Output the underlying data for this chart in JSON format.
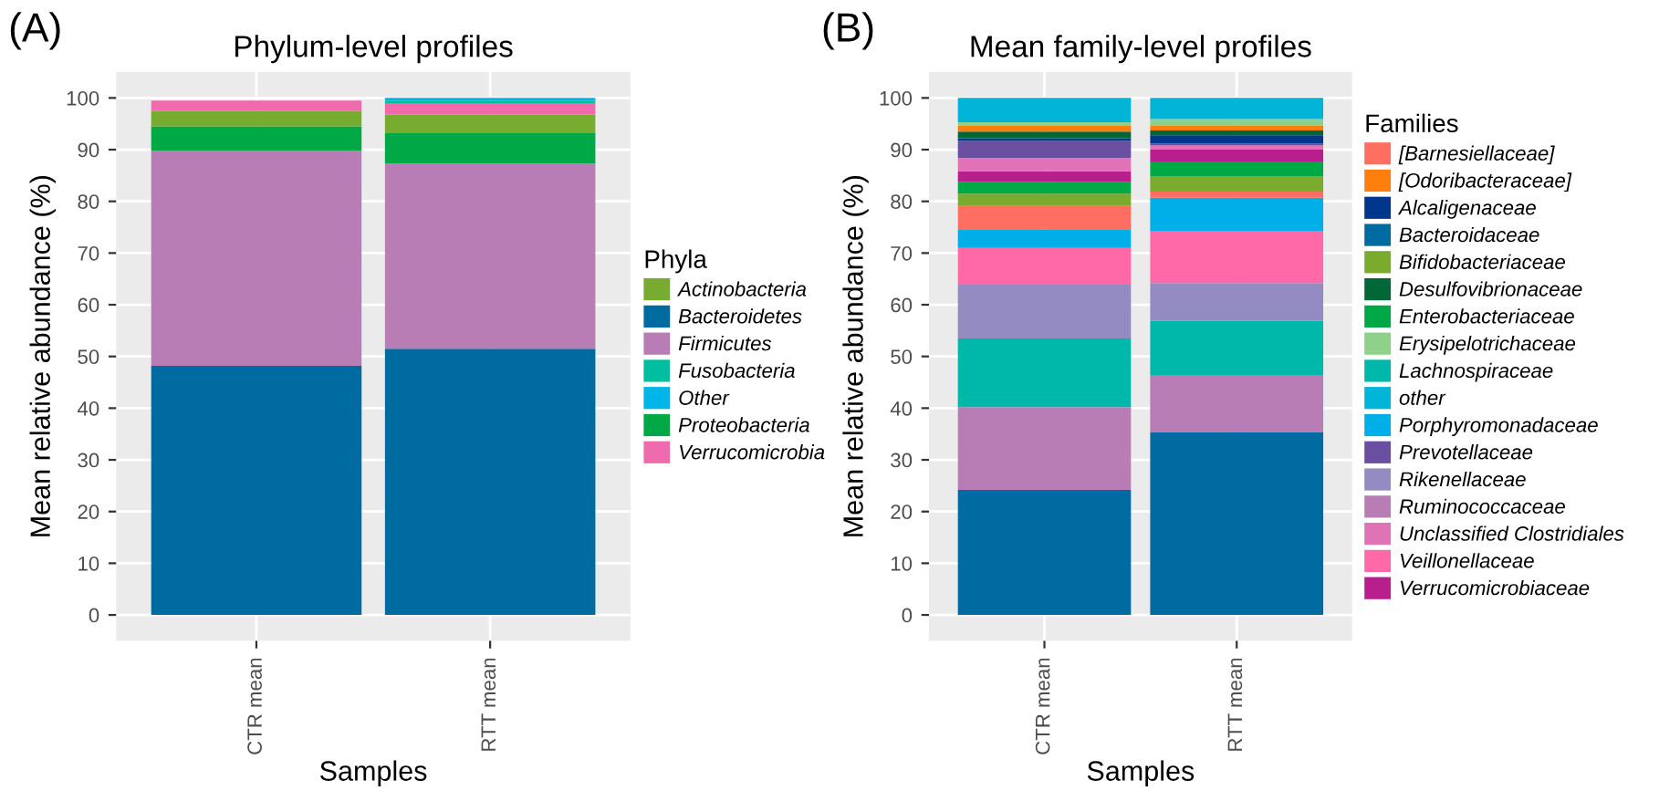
{
  "chart_data": [
    {
      "type": "bar",
      "stacked": true,
      "title": "Phylum-level profiles",
      "annotations": [
        "(A)"
      ],
      "xlabel": "Samples",
      "ylabel": "Mean relative abundance (%)",
      "legend_title": "Phyla",
      "legend": "right",
      "grid": true,
      "categories": [
        "CTR mean",
        "RTT mean"
      ],
      "ylim": [
        -5,
        105
      ],
      "yticks": [
        0,
        10,
        20,
        30,
        40,
        50,
        60,
        70,
        80,
        90,
        100
      ],
      "series": [
        {
          "name": "Bacteroidetes",
          "color": "#006ba0",
          "values": [
            48.2,
            51.5
          ]
        },
        {
          "name": "Firmicutes",
          "color": "#b87db4",
          "values": [
            41.6,
            35.8
          ]
        },
        {
          "name": "Proteobacteria",
          "color": "#00a846",
          "values": [
            4.7,
            5.9
          ]
        },
        {
          "name": "Actinobacteria",
          "color": "#77ac30",
          "values": [
            3.0,
            3.6
          ]
        },
        {
          "name": "Verrucomicrobia",
          "color": "#f06aae",
          "values": [
            2.0,
            2.2
          ]
        },
        {
          "name": "Fusobacteria",
          "color": "#00bfa0",
          "values": [
            0,
            0.5
          ]
        },
        {
          "name": "Other",
          "color": "#00b5e8",
          "values": [
            0,
            0.5
          ]
        }
      ]
    },
    {
      "type": "bar",
      "stacked": true,
      "title": "Mean family-level profiles",
      "annotations": [
        "(B)"
      ],
      "xlabel": "Samples",
      "ylabel": "Mean relative abundance (%)",
      "legend_title": "Families",
      "legend": "right",
      "grid": true,
      "categories": [
        "CTR mean",
        "RTT mean"
      ],
      "ylim": [
        -5,
        105
      ],
      "yticks": [
        0,
        10,
        20,
        30,
        40,
        50,
        60,
        70,
        80,
        90,
        100
      ],
      "series": [
        {
          "name": "Bacteroidaceae",
          "color": "#006ba0",
          "values": [
            24.2,
            35.4
          ]
        },
        {
          "name": "Ruminococcaceae",
          "color": "#b87db4",
          "values": [
            16.0,
            10.9
          ]
        },
        {
          "name": "Lachnospiraceae",
          "color": "#00b8a9",
          "values": [
            13.3,
            10.6
          ]
        },
        {
          "name": "Rikenellaceae",
          "color": "#958bc3",
          "values": [
            10.4,
            7.3
          ]
        },
        {
          "name": "Veillonellaceae",
          "color": "#ff69a8",
          "values": [
            7.1,
            10.1
          ]
        },
        {
          "name": "Porphyromonadaceae",
          "color": "#00aee8",
          "values": [
            3.6,
            6.4
          ]
        },
        {
          "name": "[Barnesiellaceae]",
          "color": "#ff6f61",
          "values": [
            4.5,
            1.2
          ]
        },
        {
          "name": "Bifidobacteriaceae",
          "color": "#7aab2c",
          "values": [
            2.4,
            3.0
          ]
        },
        {
          "name": "Enterobacteriaceae",
          "color": "#00a846",
          "values": [
            2.3,
            2.8
          ]
        },
        {
          "name": "Verrucomicrobiaceae",
          "color": "#b81e8c",
          "values": [
            2.0,
            2.3
          ]
        },
        {
          "name": "Unclassified Clostridiales",
          "color": "#e072b6",
          "values": [
            2.6,
            0.8
          ]
        },
        {
          "name": "Prevotellaceae",
          "color": "#6a4fa0",
          "values": [
            3.3,
            0.4
          ]
        },
        {
          "name": "Alcaligenaceae",
          "color": "#00368b",
          "values": [
            0.5,
            1.6
          ]
        },
        {
          "name": "Desulfovibrionaceae",
          "color": "#006837",
          "values": [
            1.3,
            0.9
          ]
        },
        {
          "name": "[Odoribacteraceae]",
          "color": "#ff7f0e",
          "values": [
            1.1,
            0.9
          ]
        },
        {
          "name": "Erysipelotrichaceae",
          "color": "#8fd18a",
          "values": [
            0.7,
            1.3
          ]
        },
        {
          "name": "other",
          "color": "#00b5d8",
          "values": [
            4.7,
            4.1
          ]
        }
      ]
    }
  ]
}
